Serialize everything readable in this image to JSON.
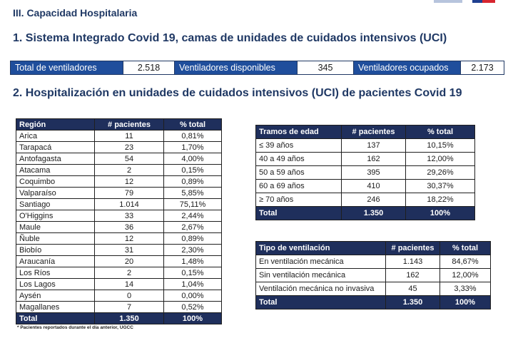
{
  "section_title": "III. Capacidad Hospitalaria",
  "heading1": "1. Sistema Integrado Covid 19, camas de unidades de cuidados intensivos (UCI)",
  "summary": {
    "total_label": "Total de ventiladores",
    "total_value": "2.518",
    "available_label": "Ventiladores disponibles",
    "available_value": "345",
    "occupied_label": "Ventiladores ocupados",
    "occupied_value": "2.173"
  },
  "heading2": "2. Hospitalización en unidades de cuidados intensivos (UCI) de pacientes Covid 19",
  "region_table": {
    "headers": [
      "Región",
      "# pacientes",
      "% total"
    ],
    "rows": [
      [
        "Arica",
        "11",
        "0,81%"
      ],
      [
        "Tarapacá",
        "23",
        "1,70%"
      ],
      [
        "Antofagasta",
        "54",
        "4,00%"
      ],
      [
        "Atacama",
        "2",
        "0,15%"
      ],
      [
        "Coquimbo",
        "12",
        "0,89%"
      ],
      [
        "Valparaíso",
        "79",
        "5,85%"
      ],
      [
        "Santiago",
        "1.014",
        "75,11%"
      ],
      [
        "O'Higgins",
        "33",
        "2,44%"
      ],
      [
        "Maule",
        "36",
        "2,67%"
      ],
      [
        "Ñuble",
        "12",
        "0,89%"
      ],
      [
        "Biobío",
        "31",
        "2,30%"
      ],
      [
        "Araucanía",
        "20",
        "1,48%"
      ],
      [
        "Los Ríos",
        "2",
        "0,15%"
      ],
      [
        "Los Lagos",
        "14",
        "1,04%"
      ],
      [
        "Aysén",
        "0",
        "0,00%"
      ],
      [
        "Magallanes",
        "7",
        "0,52%"
      ]
    ],
    "total": [
      "Total",
      "1.350",
      "100%"
    ]
  },
  "age_table": {
    "headers": [
      "Tramos de edad",
      "# pacientes",
      "% total"
    ],
    "rows": [
      [
        "≤ 39 años",
        "137",
        "10,15%"
      ],
      [
        "40 a 49 años",
        "162",
        "12,00%"
      ],
      [
        "50 a 59 años",
        "395",
        "29,26%"
      ],
      [
        "60 a 69 años",
        "410",
        "30,37%"
      ],
      [
        "≥ 70 años",
        "246",
        "18,22%"
      ]
    ],
    "total": [
      "Total",
      "1.350",
      "100%"
    ]
  },
  "vent_table": {
    "headers": [
      "Tipo de ventilación",
      "# pacientes",
      "% total"
    ],
    "rows": [
      [
        "En ventilación mecánica",
        "1.143",
        "84,67%"
      ],
      [
        "Sin ventilación mecánica",
        "162",
        "12,00%"
      ],
      [
        "Ventilación mecánica no invasiva",
        "45",
        "3,33%"
      ]
    ],
    "total": [
      "Total",
      "1.350",
      "100%"
    ]
  },
  "footnote": "* Pacientes reportados durante el día anterior, UGCC"
}
